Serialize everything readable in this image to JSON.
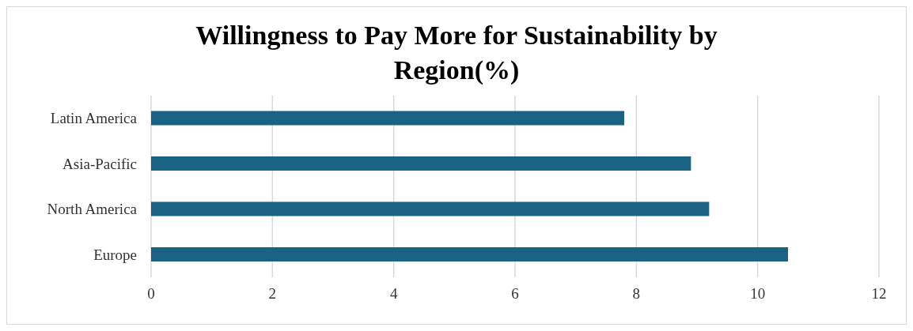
{
  "chart_data": {
    "type": "bar",
    "orientation": "horizontal",
    "title": "Willingness to Pay More for Sustainability by Region(%)",
    "categories": [
      "Latin America",
      "Asia-Pacific",
      "North America",
      "Europe"
    ],
    "values": [
      7.8,
      8.9,
      9.2,
      10.5
    ],
    "color": "#1a6283",
    "xlim": [
      0,
      12
    ],
    "xticks": [
      0,
      2,
      4,
      6,
      8,
      10,
      12
    ],
    "grid": "x"
  }
}
